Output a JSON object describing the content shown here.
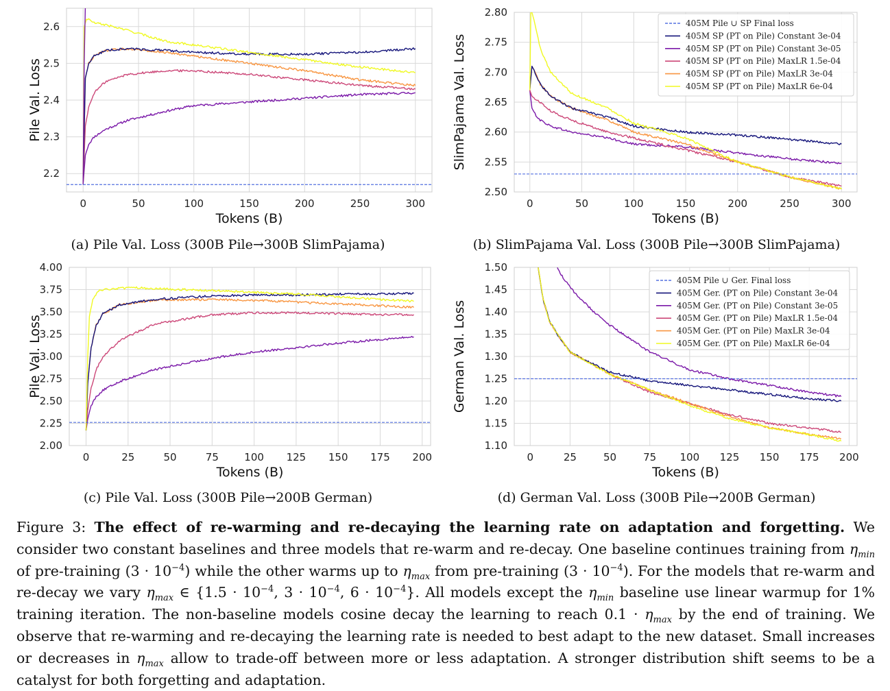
{
  "figure": {
    "label": "Figure 3:",
    "bold_title": "The effect of re-warming and re-decaying the learning rate on adaptation and forgetting.",
    "parts": [
      {
        "t": "text",
        "v": "We consider two constant baselines and three models that re-warm and re-decay. One baseline continues training from "
      },
      {
        "t": "eta",
        "sub": "min"
      },
      {
        "t": "text",
        "v": " of pre-training (3 · 10"
      },
      {
        "t": "sup",
        "v": "−4"
      },
      {
        "t": "text",
        "v": ") while the other warms up to "
      },
      {
        "t": "eta",
        "sub": "max"
      },
      {
        "t": "text",
        "v": " from pre-training (3 · 10"
      },
      {
        "t": "sup",
        "v": "−4"
      },
      {
        "t": "text",
        "v": "). For the models that re-warm and re-decay we vary "
      },
      {
        "t": "eta",
        "sub": "max"
      },
      {
        "t": "text",
        "v": " ∈ {1.5 · 10"
      },
      {
        "t": "sup",
        "v": "−4"
      },
      {
        "t": "text",
        "v": ", 3 · 10"
      },
      {
        "t": "sup",
        "v": "−4"
      },
      {
        "t": "text",
        "v": ", 6 · 10"
      },
      {
        "t": "sup",
        "v": "−4"
      },
      {
        "t": "text",
        "v": "}. All models except the "
      },
      {
        "t": "eta",
        "sub": "min"
      },
      {
        "t": "text",
        "v": " baseline use linear warmup for 1% training iteration. The non-baseline models cosine decay the learning to reach 0.1 · "
      },
      {
        "t": "eta",
        "sub": "max"
      },
      {
        "t": "text",
        "v": " by the end of training. We observe that re-warming and re-decaying the learning rate is needed to best adapt to the new dataset. Small increases or decreases in "
      },
      {
        "t": "eta",
        "sub": "max"
      },
      {
        "t": "text",
        "v": " allow to trade-off between more or less adaptation. A stronger distribution shift seems to be a catalyst for both forgetting and adaptation."
      }
    ]
  },
  "colors": {
    "baseline": "#5470e0",
    "constant_3e-04": "#14147a",
    "constant_3e-05": "#7a18a8",
    "maxlr_1.5e-04": "#cc4778",
    "maxlr_3e-04": "#f89540",
    "maxlr_6e-04": "#f0f921",
    "grid": "#d9d9d9"
  },
  "chart_data": [
    {
      "id": "a",
      "type": "line",
      "caption": "(a) Pile Val. Loss (300B Pile→300B SlimPajama)",
      "xlabel": "Tokens (B)",
      "ylabel": "Pile Val. Loss",
      "xlim": [
        -15,
        315
      ],
      "ylim": [
        2.15,
        2.65
      ],
      "xticks": [
        0,
        50,
        100,
        150,
        200,
        250,
        300
      ],
      "yticks": [
        2.2,
        2.3,
        2.4,
        2.5,
        2.6
      ],
      "ytick_labels": [
        "2.2",
        "2.3",
        "2.4",
        "2.5",
        "2.6"
      ],
      "hline": 2.17,
      "grid": true,
      "legend": null,
      "series": [
        {
          "key": "constant_3e-05",
          "x": [
            0,
            2,
            5,
            10,
            20,
            40,
            75,
            100,
            150,
            200,
            250,
            300
          ],
          "y": [
            2.17,
            2.25,
            2.28,
            2.3,
            2.32,
            2.345,
            2.37,
            2.385,
            2.395,
            2.405,
            2.415,
            2.42
          ]
        },
        {
          "key": "maxlr_1.5e-04",
          "x": [
            0,
            2,
            5,
            10,
            20,
            40,
            75,
            100,
            150,
            200,
            250,
            300
          ],
          "y": [
            2.17,
            2.33,
            2.38,
            2.42,
            2.45,
            2.47,
            2.48,
            2.48,
            2.47,
            2.455,
            2.44,
            2.43
          ]
        },
        {
          "key": "maxlr_3e-04",
          "x": [
            0,
            2,
            5,
            10,
            20,
            40,
            75,
            100,
            150,
            200,
            250,
            300
          ],
          "y": [
            2.17,
            2.46,
            2.5,
            2.52,
            2.535,
            2.54,
            2.53,
            2.52,
            2.5,
            2.48,
            2.455,
            2.44
          ]
        },
        {
          "key": "constant_3e-04",
          "x": [
            0,
            2,
            5,
            10,
            20,
            40,
            75,
            100,
            150,
            200,
            250,
            300
          ],
          "y": [
            2.17,
            2.46,
            2.5,
            2.52,
            2.535,
            2.54,
            2.535,
            2.53,
            2.525,
            2.525,
            2.53,
            2.54
          ]
        },
        {
          "key": "maxlr_6e-04",
          "x": [
            0,
            1,
            3,
            5,
            10,
            20,
            40,
            75,
            100,
            150,
            200,
            250,
            300
          ],
          "y": [
            2.17,
            2.6,
            2.62,
            2.62,
            2.61,
            2.605,
            2.59,
            2.56,
            2.55,
            2.53,
            2.51,
            2.49,
            2.475
          ]
        },
        {
          "key": "violet_spike",
          "x": [
            0,
            1,
            2
          ],
          "y": [
            2.17,
            2.5,
            2.66
          ]
        }
      ]
    },
    {
      "id": "b",
      "type": "line",
      "caption": "(b) SlimPajama Val. Loss (300B Pile→300B SlimPajama)",
      "xlabel": "Tokens (B)",
      "ylabel": "SlimPajama Val. Loss",
      "xlim": [
        -15,
        315
      ],
      "ylim": [
        2.5,
        2.8
      ],
      "xticks": [
        0,
        50,
        100,
        150,
        200,
        250,
        300
      ],
      "yticks": [
        2.5,
        2.55,
        2.6,
        2.65,
        2.7,
        2.75,
        2.8
      ],
      "ytick_labels": [
        "2.50",
        "2.55",
        "2.60",
        "2.65",
        "2.70",
        "2.75",
        "2.80"
      ],
      "hline": 2.53,
      "grid": true,
      "legend": {
        "placement": "top-right",
        "entries": [
          {
            "key": "baseline",
            "dashed": true,
            "label": "405M Pile ∪ SP  Final loss"
          },
          {
            "key": "constant_3e-04",
            "label": "405M SP (PT on Pile) Constant 3e-04"
          },
          {
            "key": "constant_3e-05",
            "label": "405M SP (PT on Pile) Constant 3e-05"
          },
          {
            "key": "maxlr_1.5e-04",
            "label": "405M SP (PT on Pile) MaxLR 1.5e-04"
          },
          {
            "key": "maxlr_3e-04",
            "label": "405M SP (PT on Pile) MaxLR 3e-04"
          },
          {
            "key": "maxlr_6e-04",
            "label": "405M SP (PT on Pile) MaxLR 6e-04"
          }
        ]
      },
      "series": [
        {
          "key": "constant_3e-05",
          "x": [
            0,
            2,
            5,
            10,
            20,
            40,
            75,
            100,
            150,
            200,
            250,
            300
          ],
          "y": [
            2.67,
            2.64,
            2.63,
            2.62,
            2.61,
            2.6,
            2.59,
            2.58,
            2.575,
            2.565,
            2.555,
            2.548
          ]
        },
        {
          "key": "maxlr_1.5e-04",
          "x": [
            0,
            2,
            5,
            10,
            20,
            40,
            75,
            100,
            150,
            200,
            250,
            300
          ],
          "y": [
            2.67,
            2.66,
            2.655,
            2.65,
            2.635,
            2.62,
            2.6,
            2.59,
            2.57,
            2.55,
            2.525,
            2.51
          ]
        },
        {
          "key": "maxlr_3e-04",
          "x": [
            0,
            2,
            5,
            10,
            20,
            40,
            75,
            100,
            150,
            200,
            250,
            300
          ],
          "y": [
            2.67,
            2.71,
            2.7,
            2.68,
            2.66,
            2.64,
            2.62,
            2.6,
            2.58,
            2.55,
            2.525,
            2.505
          ]
        },
        {
          "key": "constant_3e-04",
          "x": [
            0,
            2,
            5,
            10,
            20,
            40,
            75,
            100,
            150,
            200,
            250,
            300
          ],
          "y": [
            2.67,
            2.71,
            2.7,
            2.68,
            2.66,
            2.64,
            2.625,
            2.61,
            2.6,
            2.595,
            2.588,
            2.58
          ]
        },
        {
          "key": "maxlr_6e-04",
          "x": [
            0,
            1,
            2,
            5,
            10,
            20,
            40,
            75,
            100,
            150,
            200,
            250,
            300
          ],
          "y": [
            2.67,
            2.8,
            2.8,
            2.78,
            2.74,
            2.7,
            2.665,
            2.64,
            2.615,
            2.59,
            2.55,
            2.525,
            2.505
          ]
        }
      ]
    },
    {
      "id": "c",
      "type": "line",
      "caption": "(c) Pile Val. Loss (300B Pile→200B German)",
      "xlabel": "Tokens (B)",
      "ylabel": "Pile Val. Loss",
      "xlim": [
        -10,
        205
      ],
      "ylim": [
        2.0,
        4.0
      ],
      "xticks": [
        0,
        25,
        50,
        75,
        100,
        125,
        150,
        175,
        200
      ],
      "yticks": [
        2.0,
        2.25,
        2.5,
        2.75,
        3.0,
        3.25,
        3.5,
        3.75,
        4.0
      ],
      "ytick_labels": [
        "2.00",
        "2.25",
        "2.50",
        "2.75",
        "3.00",
        "3.25",
        "3.50",
        "3.75",
        "4.00"
      ],
      "hline": 2.26,
      "grid": true,
      "legend": null,
      "series": [
        {
          "key": "constant_3e-05",
          "x": [
            0,
            1,
            3,
            6,
            10,
            20,
            40,
            75,
            100,
            125,
            150,
            175,
            195
          ],
          "y": [
            2.17,
            2.3,
            2.45,
            2.55,
            2.62,
            2.72,
            2.85,
            2.98,
            3.05,
            3.1,
            3.15,
            3.19,
            3.22
          ]
        },
        {
          "key": "maxlr_1.5e-04",
          "x": [
            0,
            1,
            3,
            6,
            10,
            20,
            40,
            75,
            100,
            125,
            150,
            175,
            195
          ],
          "y": [
            2.17,
            2.4,
            2.65,
            2.85,
            3.0,
            3.18,
            3.36,
            3.47,
            3.49,
            3.49,
            3.48,
            3.47,
            3.47
          ]
        },
        {
          "key": "maxlr_3e-04",
          "x": [
            0,
            1,
            3,
            6,
            10,
            20,
            40,
            75,
            100,
            125,
            150,
            175,
            195
          ],
          "y": [
            2.17,
            2.7,
            3.1,
            3.35,
            3.48,
            3.58,
            3.63,
            3.64,
            3.63,
            3.61,
            3.59,
            3.57,
            3.55
          ]
        },
        {
          "key": "constant_3e-04",
          "x": [
            0,
            1,
            3,
            6,
            10,
            20,
            40,
            75,
            100,
            125,
            150,
            175,
            195
          ],
          "y": [
            2.17,
            2.7,
            3.1,
            3.35,
            3.48,
            3.58,
            3.64,
            3.68,
            3.69,
            3.69,
            3.7,
            3.7,
            3.71
          ]
        },
        {
          "key": "maxlr_6e-04",
          "x": [
            0,
            1,
            2,
            4,
            8,
            15,
            30,
            60,
            100,
            125,
            150,
            175,
            195
          ],
          "y": [
            2.17,
            3.0,
            3.45,
            3.65,
            3.74,
            3.76,
            3.77,
            3.75,
            3.72,
            3.7,
            3.67,
            3.64,
            3.62
          ]
        }
      ]
    },
    {
      "id": "d",
      "type": "line",
      "caption": "(d) German Val. Loss (300B Pile→200B German)",
      "xlabel": "Tokens (B)",
      "ylabel": "German Val. Loss",
      "xlim": [
        -10,
        205
      ],
      "ylim": [
        1.1,
        1.5
      ],
      "xticks": [
        0,
        25,
        50,
        75,
        100,
        125,
        150,
        175,
        200
      ],
      "yticks": [
        1.1,
        1.15,
        1.2,
        1.25,
        1.3,
        1.35,
        1.4,
        1.45,
        1.5
      ],
      "ytick_labels": [
        "1.10",
        "1.15",
        "1.20",
        "1.25",
        "1.30",
        "1.35",
        "1.40",
        "1.45",
        "1.50"
      ],
      "hline": 1.25,
      "grid": true,
      "legend": {
        "placement": "top-right",
        "entries": [
          {
            "key": "baseline",
            "dashed": true,
            "label": "405M Pile ∪ Ger.  Final loss"
          },
          {
            "key": "constant_3e-04",
            "label": "405M Ger. (PT on Pile) Constant 3e-04"
          },
          {
            "key": "constant_3e-05",
            "label": "405M Ger. (PT on Pile) Constant 3e-05"
          },
          {
            "key": "maxlr_1.5e-04",
            "label": "405M Ger. (PT on Pile) MaxLR 1.5e-04"
          },
          {
            "key": "maxlr_3e-04",
            "label": "405M Ger. (PT on Pile) MaxLR 3e-04"
          },
          {
            "key": "maxlr_6e-04",
            "label": "405M Ger. (PT on Pile) MaxLR 6e-04"
          }
        ]
      },
      "series": [
        {
          "key": "constant_3e-05",
          "x": [
            17,
            20,
            25,
            30,
            40,
            50,
            75,
            100,
            125,
            150,
            175,
            195
          ],
          "y": [
            1.5,
            1.48,
            1.455,
            1.435,
            1.4,
            1.37,
            1.31,
            1.27,
            1.25,
            1.235,
            1.22,
            1.21
          ]
        },
        {
          "key": "maxlr_1.5e-04",
          "x": [
            5,
            8,
            12,
            17,
            25,
            35,
            50,
            75,
            100,
            125,
            150,
            175,
            195
          ],
          "y": [
            1.5,
            1.43,
            1.38,
            1.35,
            1.31,
            1.29,
            1.26,
            1.22,
            1.195,
            1.17,
            1.15,
            1.14,
            1.13
          ]
        },
        {
          "key": "maxlr_3e-04",
          "x": [
            5,
            8,
            12,
            17,
            25,
            35,
            50,
            75,
            100,
            125,
            150,
            175,
            195
          ],
          "y": [
            1.5,
            1.43,
            1.38,
            1.35,
            1.31,
            1.29,
            1.26,
            1.225,
            1.195,
            1.165,
            1.14,
            1.125,
            1.115
          ]
        },
        {
          "key": "constant_3e-04",
          "x": [
            5,
            8,
            12,
            17,
            25,
            35,
            50,
            75,
            100,
            125,
            150,
            175,
            195
          ],
          "y": [
            1.5,
            1.43,
            1.38,
            1.35,
            1.31,
            1.29,
            1.265,
            1.245,
            1.235,
            1.225,
            1.215,
            1.205,
            1.2
          ]
        },
        {
          "key": "maxlr_6e-04",
          "x": [
            5,
            8,
            12,
            17,
            25,
            35,
            50,
            75,
            100,
            125,
            150,
            175,
            195
          ],
          "y": [
            1.5,
            1.43,
            1.38,
            1.35,
            1.31,
            1.29,
            1.26,
            1.225,
            1.19,
            1.16,
            1.14,
            1.125,
            1.11
          ]
        }
      ]
    }
  ]
}
